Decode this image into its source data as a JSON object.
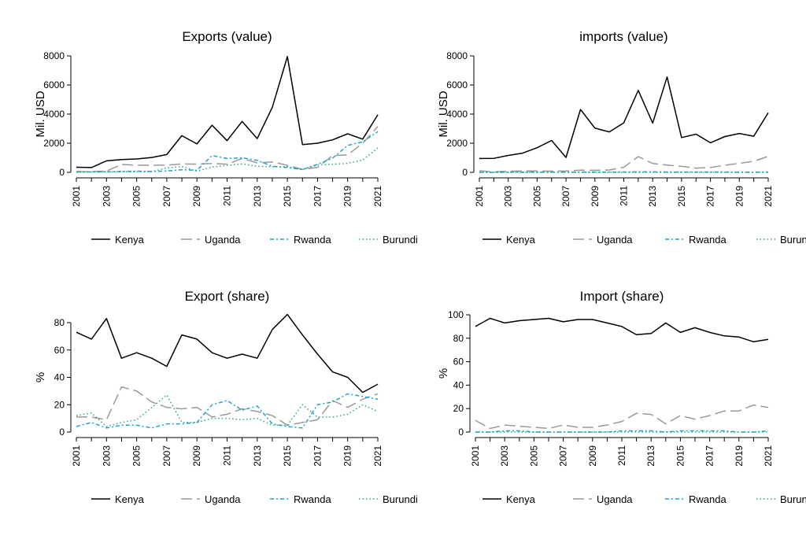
{
  "chart_data": [
    {
      "type": "line",
      "title": "Exports (value)",
      "ylabel": "Mil. USD",
      "ylim": [
        0,
        8000
      ],
      "yticks": [
        0,
        2000,
        4000,
        6000,
        8000
      ],
      "x": [
        2001,
        2002,
        2003,
        2004,
        2005,
        2006,
        2007,
        2008,
        2009,
        2010,
        2011,
        2012,
        2013,
        2014,
        2015,
        2016,
        2017,
        2018,
        2019,
        2020,
        2021
      ],
      "xticks": [
        2001,
        2003,
        2005,
        2007,
        2009,
        2011,
        2013,
        2015,
        2017,
        2019,
        2021
      ],
      "legend_position": "bottom",
      "grid": false,
      "series": [
        {
          "name": "Kenya",
          "values": [
            350,
            330,
            790,
            880,
            920,
            1020,
            1220,
            2520,
            1950,
            3240,
            2180,
            3500,
            2320,
            4470,
            7950,
            1910,
            2000,
            2230,
            2650,
            2280,
            3950
          ]
        },
        {
          "name": "Uganda",
          "values": [
            60,
            40,
            90,
            540,
            490,
            480,
            500,
            580,
            560,
            610,
            560,
            950,
            650,
            720,
            480,
            200,
            340,
            1150,
            1200,
            2000,
            3150
          ]
        },
        {
          "name": "Rwanda",
          "values": [
            20,
            30,
            30,
            60,
            80,
            60,
            90,
            180,
            140,
            1150,
            950,
            1000,
            820,
            420,
            330,
            190,
            550,
            980,
            1850,
            2100,
            2800
          ]
        },
        {
          "name": "Burundi",
          "values": [
            10,
            20,
            30,
            40,
            40,
            50,
            300,
            400,
            80,
            370,
            480,
            580,
            420,
            380,
            390,
            200,
            510,
            550,
            620,
            830,
            1680
          ]
        }
      ]
    },
    {
      "type": "line",
      "title": "imports (value)",
      "ylabel": "Mil. USD",
      "ylim": [
        0,
        8000
      ],
      "yticks": [
        0,
        2000,
        4000,
        6000,
        8000
      ],
      "x": [
        2001,
        2002,
        2003,
        2004,
        2005,
        2006,
        2007,
        2008,
        2009,
        2010,
        2011,
        2012,
        2013,
        2014,
        2015,
        2016,
        2017,
        2018,
        2019,
        2020,
        2021
      ],
      "xticks": [
        2001,
        2003,
        2005,
        2007,
        2009,
        2011,
        2013,
        2015,
        2017,
        2019,
        2021
      ],
      "legend_position": "bottom",
      "grid": false,
      "series": [
        {
          "name": "Kenya",
          "values": [
            950,
            960,
            1160,
            1320,
            1690,
            2190,
            1020,
            4320,
            3040,
            2780,
            3400,
            5630,
            3380,
            6550,
            2390,
            2620,
            2030,
            2460,
            2670,
            2480,
            4090
          ]
        },
        {
          "name": "Uganda",
          "values": [
            110,
            30,
            80,
            90,
            90,
            80,
            90,
            150,
            140,
            160,
            350,
            1080,
            610,
            500,
            410,
            290,
            330,
            490,
            620,
            760,
            1100
          ]
        },
        {
          "name": "Rwanda",
          "values": [
            0,
            0,
            10,
            10,
            10,
            10,
            10,
            10,
            10,
            10,
            20,
            30,
            30,
            20,
            20,
            20,
            20,
            20,
            10,
            10,
            20
          ]
        },
        {
          "name": "Burundi",
          "values": [
            0,
            0,
            0,
            0,
            0,
            0,
            0,
            0,
            0,
            0,
            0,
            0,
            0,
            0,
            0,
            0,
            0,
            0,
            0,
            0,
            0
          ]
        }
      ]
    },
    {
      "type": "line",
      "title": "Export (share)",
      "ylabel": "%",
      "ylim": [
        0,
        80
      ],
      "yticks": [
        0,
        20,
        40,
        60,
        80
      ],
      "x": [
        2001,
        2002,
        2003,
        2004,
        2005,
        2006,
        2007,
        2008,
        2009,
        2010,
        2011,
        2012,
        2013,
        2014,
        2015,
        2016,
        2017,
        2018,
        2019,
        2020,
        2021
      ],
      "xticks": [
        2001,
        2003,
        2005,
        2007,
        2009,
        2011,
        2013,
        2015,
        2017,
        2019,
        2021
      ],
      "legend_position": "bottom",
      "grid": false,
      "series": [
        {
          "name": "Kenya",
          "values": [
            73,
            68,
            83,
            54,
            58,
            54,
            48,
            71,
            68,
            58,
            54,
            57,
            54,
            75,
            86,
            71,
            57,
            44,
            40,
            29,
            35
          ]
        },
        {
          "name": "Uganda",
          "values": [
            11,
            11,
            9,
            33,
            30,
            22,
            18,
            17,
            18,
            11,
            13,
            17,
            15,
            12,
            5,
            7,
            9,
            23,
            18,
            24,
            28
          ]
        },
        {
          "name": "Rwanda",
          "values": [
            4,
            7,
            3,
            5,
            5,
            3,
            6,
            6,
            7,
            20,
            23,
            16,
            19,
            6,
            4,
            3,
            20,
            22,
            28,
            26,
            24
          ]
        },
        {
          "name": "Burundi",
          "values": [
            12,
            14,
            4,
            7,
            9,
            18,
            27,
            7,
            7,
            10,
            10,
            9,
            10,
            5,
            5,
            20,
            11,
            11,
            13,
            20,
            15
          ]
        }
      ]
    },
    {
      "type": "line",
      "title": "Import (share)",
      "ylabel": "%",
      "ylim": [
        0,
        100
      ],
      "yticks": [
        0,
        20,
        40,
        60,
        80,
        100
      ],
      "x": [
        2001,
        2002,
        2003,
        2004,
        2005,
        2006,
        2007,
        2008,
        2009,
        2010,
        2011,
        2012,
        2013,
        2014,
        2015,
        2016,
        2017,
        2018,
        2019,
        2020,
        2021
      ],
      "xticks": [
        2001,
        2003,
        2005,
        2007,
        2009,
        2011,
        2013,
        2015,
        2017,
        2019,
        2021
      ],
      "legend_position": "bottom",
      "grid": false,
      "series": [
        {
          "name": "Kenya",
          "values": [
            90,
            97,
            93,
            95,
            96,
            97,
            94,
            96,
            96,
            93,
            90,
            83,
            84,
            93,
            85,
            89,
            85,
            82,
            81,
            77,
            79
          ]
        },
        {
          "name": "Uganda",
          "values": [
            10,
            3,
            6,
            5,
            4,
            3,
            6,
            4,
            4,
            6,
            9,
            16,
            15,
            7,
            14,
            11,
            14,
            18,
            18,
            23,
            21
          ]
        },
        {
          "name": "Rwanda",
          "values": [
            0,
            0,
            1,
            1,
            0,
            0,
            0,
            0,
            0,
            0,
            1,
            1,
            1,
            0,
            1,
            1,
            1,
            1,
            0,
            0,
            1
          ]
        },
        {
          "name": "Burundi",
          "values": [
            0,
            0,
            0,
            0,
            0,
            0,
            0,
            0,
            0,
            0,
            0,
            0,
            0,
            0,
            0,
            0,
            0,
            0,
            0,
            0,
            0
          ]
        }
      ]
    }
  ],
  "styles": {
    "series_colors": [
      "#000000",
      "#999999",
      "#1aa3d4",
      "#2aa87a"
    ],
    "series_dashes": [
      "",
      "14,6",
      "5,3,2,3",
      "1.5,3"
    ]
  }
}
